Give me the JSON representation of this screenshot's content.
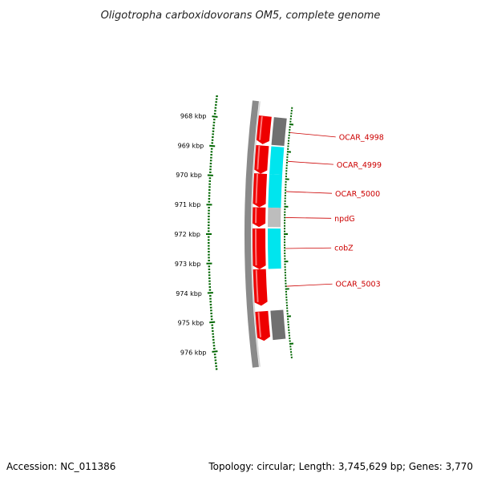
{
  "header": {
    "title": "Oligotropha carboxidovorans OM5, complete genome"
  },
  "footer": {
    "accession": "Accession: NC_011386",
    "topology": "Topology: circular; Length: 3,745,629 bp; Genes: 3,770"
  },
  "ruler": {
    "ticks": [
      {
        "label": "968 kbp",
        "pos": 968
      },
      {
        "label": "969 kbp",
        "pos": 969
      },
      {
        "label": "970 kbp",
        "pos": 970
      },
      {
        "label": "971 kbp",
        "pos": 971
      },
      {
        "label": "972 kbp",
        "pos": 972
      },
      {
        "label": "973 kbp",
        "pos": 973
      },
      {
        "label": "974 kbp",
        "pos": 974
      },
      {
        "label": "975 kbp",
        "pos": 975
      },
      {
        "label": "976 kbp",
        "pos": 976
      }
    ]
  },
  "colors": {
    "cds": "#ee0000",
    "gene_cyan": "#00e5ee",
    "gene_gray": "#707070",
    "gene_lightgray": "#bdbdbd",
    "backbone": "#8a8a8a",
    "tick": "#006600",
    "label": "#cc0000"
  },
  "genes": [
    {
      "name": "OCAR_4998",
      "start": 967.8,
      "end": 968.8,
      "feature": "gene_gray"
    },
    {
      "name": "OCAR_4999",
      "start": 968.85,
      "end": 969.85,
      "feature": "gene_cyan"
    },
    {
      "name": "OCAR_5000",
      "start": 969.85,
      "end": 971.05,
      "feature": "gene_cyan"
    },
    {
      "name": "npdG",
      "start": 971.05,
      "end": 971.75,
      "feature": "gene_lightgray"
    },
    {
      "name": "cobZ",
      "start": 971.8,
      "end": 973.25,
      "feature": "gene_cyan"
    },
    {
      "name": "OCAR_5003",
      "start": 973.25,
      "end": 974.55,
      "feature": null
    },
    {
      "name": "",
      "start": 974.75,
      "end": 975.8,
      "feature": "gene_gray"
    }
  ]
}
